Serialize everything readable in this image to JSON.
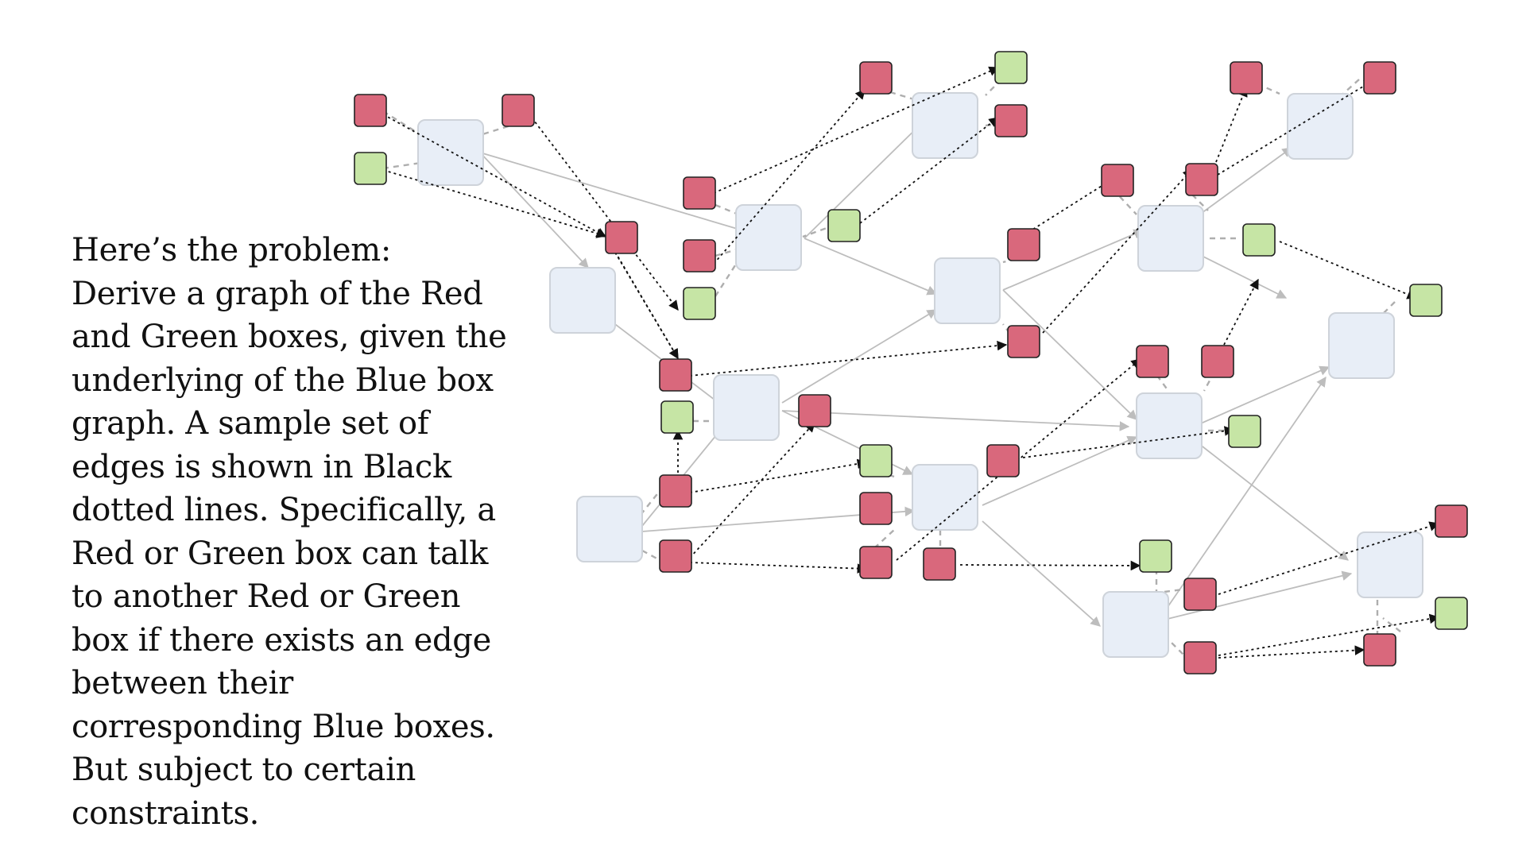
{
  "problem": {
    "text": "Here’s the problem:\nDerive a graph of the Red and Green boxes, given the underlying of the Blue box graph. A sample set of edges is shown in Black dotted lines. Specifically, a Red or Green box can talk to another Red or Green box if there exists an edge between their corresponding Blue boxes. But subject to certain constraints."
  },
  "colors": {
    "blue_box": "#E8EEF7",
    "red_box": "#D9687C",
    "green_box": "#C6E5A5",
    "blue_edge": "#BDBDBD",
    "sample_edge": "#111111"
  }
}
